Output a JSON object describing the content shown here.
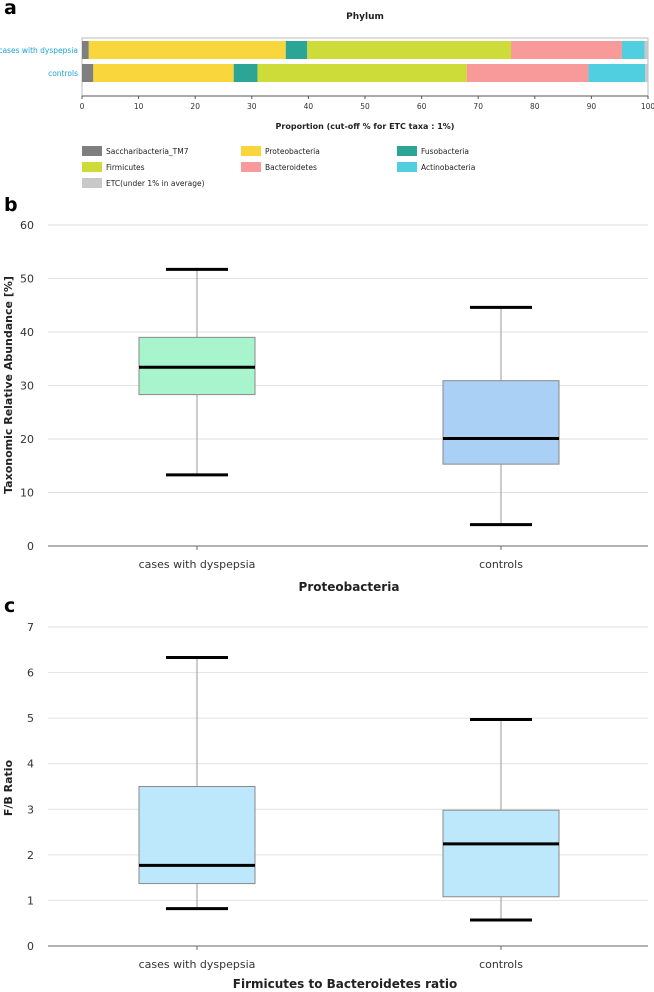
{
  "panel_labels": {
    "a": "a",
    "b": "b",
    "c": "c"
  },
  "chart_data": [
    {
      "type": "bar",
      "orientation": "horizontal-stacked",
      "title": "Phylum",
      "xlabel": "Proportion (cut-off % for ETC taxa : 1%)",
      "xlim": [
        0,
        100
      ],
      "xticks": [
        0,
        10,
        20,
        30,
        40,
        50,
        60,
        70,
        80,
        90,
        100
      ],
      "categories": [
        "cases with dyspepsia",
        "controls"
      ],
      "series": [
        {
          "name": "Saccharibacteria_TM7",
          "color": "#7f7f7f",
          "values": [
            1.2,
            2.0
          ]
        },
        {
          "name": "Proteobacteria",
          "color": "#f9d63c",
          "values": [
            34.8,
            24.8
          ]
        },
        {
          "name": "Fusobacteria",
          "color": "#2ca597",
          "values": [
            3.8,
            4.2
          ]
        },
        {
          "name": "Firmicutes",
          "color": "#cddc39",
          "values": [
            36.0,
            37.0
          ]
        },
        {
          "name": "Bacteroidetes",
          "color": "#f99a9a",
          "values": [
            19.6,
            21.5
          ]
        },
        {
          "name": "Actinobacteria",
          "color": "#4fcfe0",
          "values": [
            4.0,
            10.0
          ]
        },
        {
          "name": "ETC(under 1% in average)",
          "color": "#c8c8c8",
          "values": [
            0.6,
            0.5
          ]
        }
      ]
    },
    {
      "type": "box",
      "title": "",
      "xlabel": "Proteobacteria",
      "ylabel": "Taxonomic Relative Abundance [%]",
      "ylim": [
        0,
        60
      ],
      "yticks": [
        0,
        10,
        20,
        30,
        40,
        50,
        60
      ],
      "grid": true,
      "categories": [
        "cases with dyspepsia",
        "controls"
      ],
      "boxes": [
        {
          "name": "cases with dyspepsia",
          "color": "#a8f5cd",
          "min": 13.3,
          "q1": 28.3,
          "median": 33.4,
          "q3": 39.0,
          "max": 51.7
        },
        {
          "name": "controls",
          "color": "#aad0f5",
          "min": 4.0,
          "q1": 15.3,
          "median": 20.1,
          "q3": 30.9,
          "max": 44.6
        }
      ]
    },
    {
      "type": "box",
      "title": "",
      "xlabel": "Firmicutes to Bacteroidetes ratio",
      "ylabel": "F/B Ratio",
      "ylim": [
        0,
        7
      ],
      "yticks": [
        0,
        1,
        2,
        3,
        4,
        5,
        6,
        7
      ],
      "grid": true,
      "categories": [
        "cases with dyspepsia",
        "controls"
      ],
      "boxes": [
        {
          "name": "cases with dyspepsia",
          "color": "#bde8fb",
          "min": 0.82,
          "q1": 1.37,
          "median": 1.77,
          "q3": 3.5,
          "max": 6.33
        },
        {
          "name": "controls",
          "color": "#bde8fb",
          "min": 0.57,
          "q1": 1.08,
          "median": 2.24,
          "q3": 2.98,
          "max": 4.97
        }
      ]
    }
  ]
}
